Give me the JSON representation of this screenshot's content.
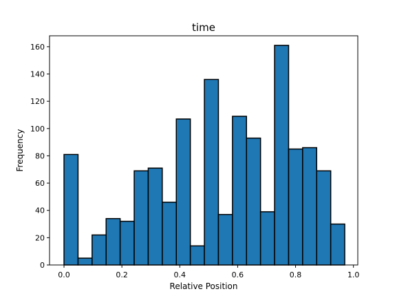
{
  "chart_data": {
    "type": "bar",
    "title": "time",
    "xlabel": "Relative Position",
    "ylabel": "Frequency",
    "bar_color": "#1f77b4",
    "edge_color": "#000000",
    "xlim": [
      -0.05,
      1.015
    ],
    "ylim": [
      0,
      168
    ],
    "xticks": [
      0.0,
      0.2,
      0.4,
      0.6,
      0.8,
      1.0
    ],
    "xtick_labels": [
      "0.0",
      "0.2",
      "0.4",
      "0.6",
      "0.8",
      "1.0"
    ],
    "yticks": [
      0,
      20,
      40,
      60,
      80,
      100,
      120,
      140,
      160
    ],
    "ytick_labels": [
      "0",
      "20",
      "40",
      "60",
      "80",
      "100",
      "120",
      "140",
      "160"
    ],
    "bin_edges": [
      0.0,
      0.0485,
      0.097,
      0.1455,
      0.194,
      0.2425,
      0.291,
      0.3395,
      0.388,
      0.4365,
      0.485,
      0.5335,
      0.582,
      0.6305,
      0.679,
      0.7275,
      0.776,
      0.8245,
      0.873,
      0.9215,
      0.97
    ],
    "values": [
      81,
      5,
      22,
      34,
      32,
      69,
      71,
      46,
      107,
      14,
      136,
      37,
      109,
      93,
      39,
      161,
      85,
      86,
      69,
      30
    ],
    "grid": false,
    "legend": "none"
  }
}
